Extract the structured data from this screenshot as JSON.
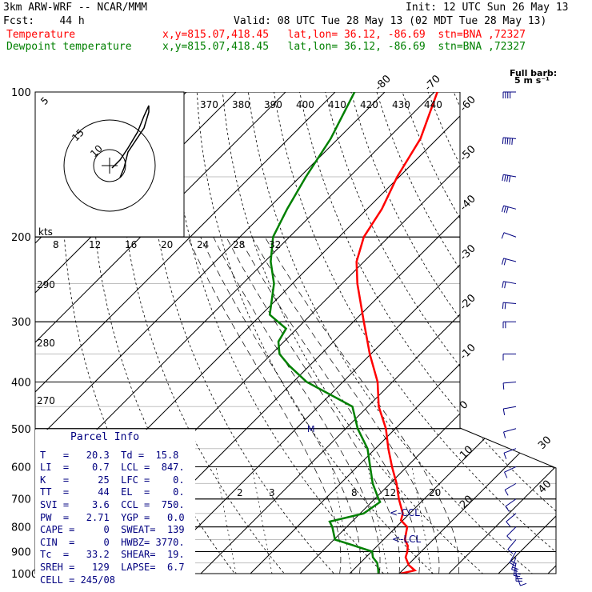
{
  "header": {
    "model": "3km ARW-WRF -- NCAR/MMM",
    "init": "Init: 12 UTC Sun 26 May 13",
    "fcst": "Fcst:    44 h",
    "valid": "Valid: 08 UTC Tue 28 May 13 (02 MDT Tue 28 May 13)"
  },
  "legend": [
    {
      "name": "Temperature",
      "info": "x,y=815.07,418.45   lat,lon= 36.12, -86.69  stn=BNA ,72327",
      "color": "#ff0000"
    },
    {
      "name": "Dewpoint temperature",
      "info": "x,y=815.07,418.45   lat,lon= 36.12, -86.69  stn=BNA ,72327",
      "color": "#008000"
    }
  ],
  "barb_note": {
    "line1": "Full barb:",
    "line2": "5 m s⁻¹"
  },
  "hodograph": {
    "units": "kts",
    "ring_labels": [
      "5",
      "10",
      "15"
    ]
  },
  "mixing_ratio_labels": [
    "2",
    "3",
    "8",
    "12",
    "20"
  ],
  "ccl_label": "<-CCL",
  "lcl_label": "<-LCL",
  "parcel_info": {
    "title": "Parcel Info",
    "rows": [
      "T   =   20.3  Td =  15.8",
      "LI  =    0.7  LCL =  847.",
      "K   =     25  LFC =    0.",
      "TT  =     44  EL  =    0.",
      "SVI =    3.6  CCL =  750.",
      "PW  =   2.71  YGP =   0.0",
      "CAPE =     0  SWEAT=  139",
      "CIN  =     0  HWBZ= 3770.",
      "Tc  =   33.2  SHEAR=  19.",
      "SREH =   129  LAPSE=  6.7",
      "CELL = 245/08"
    ]
  },
  "chart_data": {
    "type": "line",
    "subtype": "skew-T log-P",
    "y_axis": {
      "label": "pressure (hPa)",
      "ticks": [
        100,
        200,
        300,
        400,
        500,
        600,
        700,
        800,
        900,
        1000
      ],
      "scale": "log"
    },
    "isotherm_labels": [
      -80,
      -70,
      -60,
      -50,
      -40,
      -30,
      -20,
      -10,
      0,
      10,
      20,
      30,
      40
    ],
    "theta_labels_top": [
      370,
      380,
      390,
      400,
      410,
      420,
      430,
      440
    ],
    "theta_labels_inset": [
      8,
      12,
      16,
      20,
      24,
      28,
      32
    ],
    "theta_labels_left": [
      290,
      280,
      270
    ],
    "series": [
      {
        "name": "Temperature",
        "color": "#ff0000",
        "p": [
          1000,
          985,
          960,
          925,
          900,
          875,
          850,
          800,
          775,
          750,
          700,
          650,
          600,
          550,
          500,
          450,
          400,
          350,
          300,
          250,
          225,
          200,
          175,
          150,
          125,
          100
        ],
        "T": [
          20.3,
          22.5,
          20.2,
          18.0,
          17.2,
          16.1,
          14.3,
          12.2,
          9.6,
          8.6,
          4.9,
          1.3,
          -3.0,
          -7.4,
          -11.9,
          -17.8,
          -23.0,
          -30.2,
          -37.9,
          -46.9,
          -51.5,
          -55.0,
          -57.0,
          -60.4,
          -63.4,
          -69.4
        ]
      },
      {
        "name": "Dewpoint temperature",
        "color": "#008000",
        "p": [
          1000,
          980,
          950,
          925,
          900,
          870,
          850,
          800,
          780,
          750,
          710,
          700,
          650,
          600,
          550,
          500,
          450,
          400,
          370,
          350,
          330,
          310,
          290,
          250,
          225,
          200,
          175,
          150,
          125,
          100
        ],
        "Td": [
          15.8,
          14.9,
          13.4,
          11.4,
          10.1,
          4.3,
          0.2,
          -2.9,
          -4.5,
          0.7,
          1.7,
          0.8,
          -3.5,
          -7.4,
          -11.6,
          -17.6,
          -23.1,
          -37.3,
          -44.1,
          -48.4,
          -51.1,
          -52.2,
          -58.3,
          -63.7,
          -68.8,
          -73.3,
          -76.1,
          -78.8,
          -81.5,
          -86.1
        ]
      }
    ],
    "wind_barbs": [
      {
        "p": 1000,
        "speed_ms": 7,
        "dir": 160
      },
      {
        "p": 975,
        "speed_ms": 10,
        "dir": 180
      },
      {
        "p": 950,
        "speed_ms": 12,
        "dir": 190
      },
      {
        "p": 925,
        "speed_ms": 12,
        "dir": 200
      },
      {
        "p": 900,
        "speed_ms": 10,
        "dir": 210
      },
      {
        "p": 850,
        "speed_ms": 7,
        "dir": 220
      },
      {
        "p": 800,
        "speed_ms": 5,
        "dir": 225
      },
      {
        "p": 750,
        "speed_ms": 5,
        "dir": 230
      },
      {
        "p": 700,
        "speed_ms": 5,
        "dir": 235
      },
      {
        "p": 650,
        "speed_ms": 5,
        "dir": 240
      },
      {
        "p": 600,
        "speed_ms": 5,
        "dir": 245
      },
      {
        "p": 550,
        "speed_ms": 5,
        "dir": 250
      },
      {
        "p": 500,
        "speed_ms": 7,
        "dir": 255
      },
      {
        "p": 450,
        "speed_ms": 7,
        "dir": 260
      },
      {
        "p": 400,
        "speed_ms": 7,
        "dir": 265
      },
      {
        "p": 350,
        "speed_ms": 7,
        "dir": 270
      },
      {
        "p": 300,
        "speed_ms": 10,
        "dir": 270
      },
      {
        "p": 275,
        "speed_ms": 10,
        "dir": 275
      },
      {
        "p": 250,
        "speed_ms": 10,
        "dir": 280
      },
      {
        "p": 225,
        "speed_ms": 10,
        "dir": 285
      },
      {
        "p": 200,
        "speed_ms": 7,
        "dir": 290
      },
      {
        "p": 175,
        "speed_ms": 15,
        "dir": 285
      },
      {
        "p": 150,
        "speed_ms": 20,
        "dir": 280
      },
      {
        "p": 125,
        "speed_ms": 25,
        "dir": 275
      },
      {
        "p": 100,
        "speed_ms": 20,
        "dir": 270
      }
    ]
  }
}
